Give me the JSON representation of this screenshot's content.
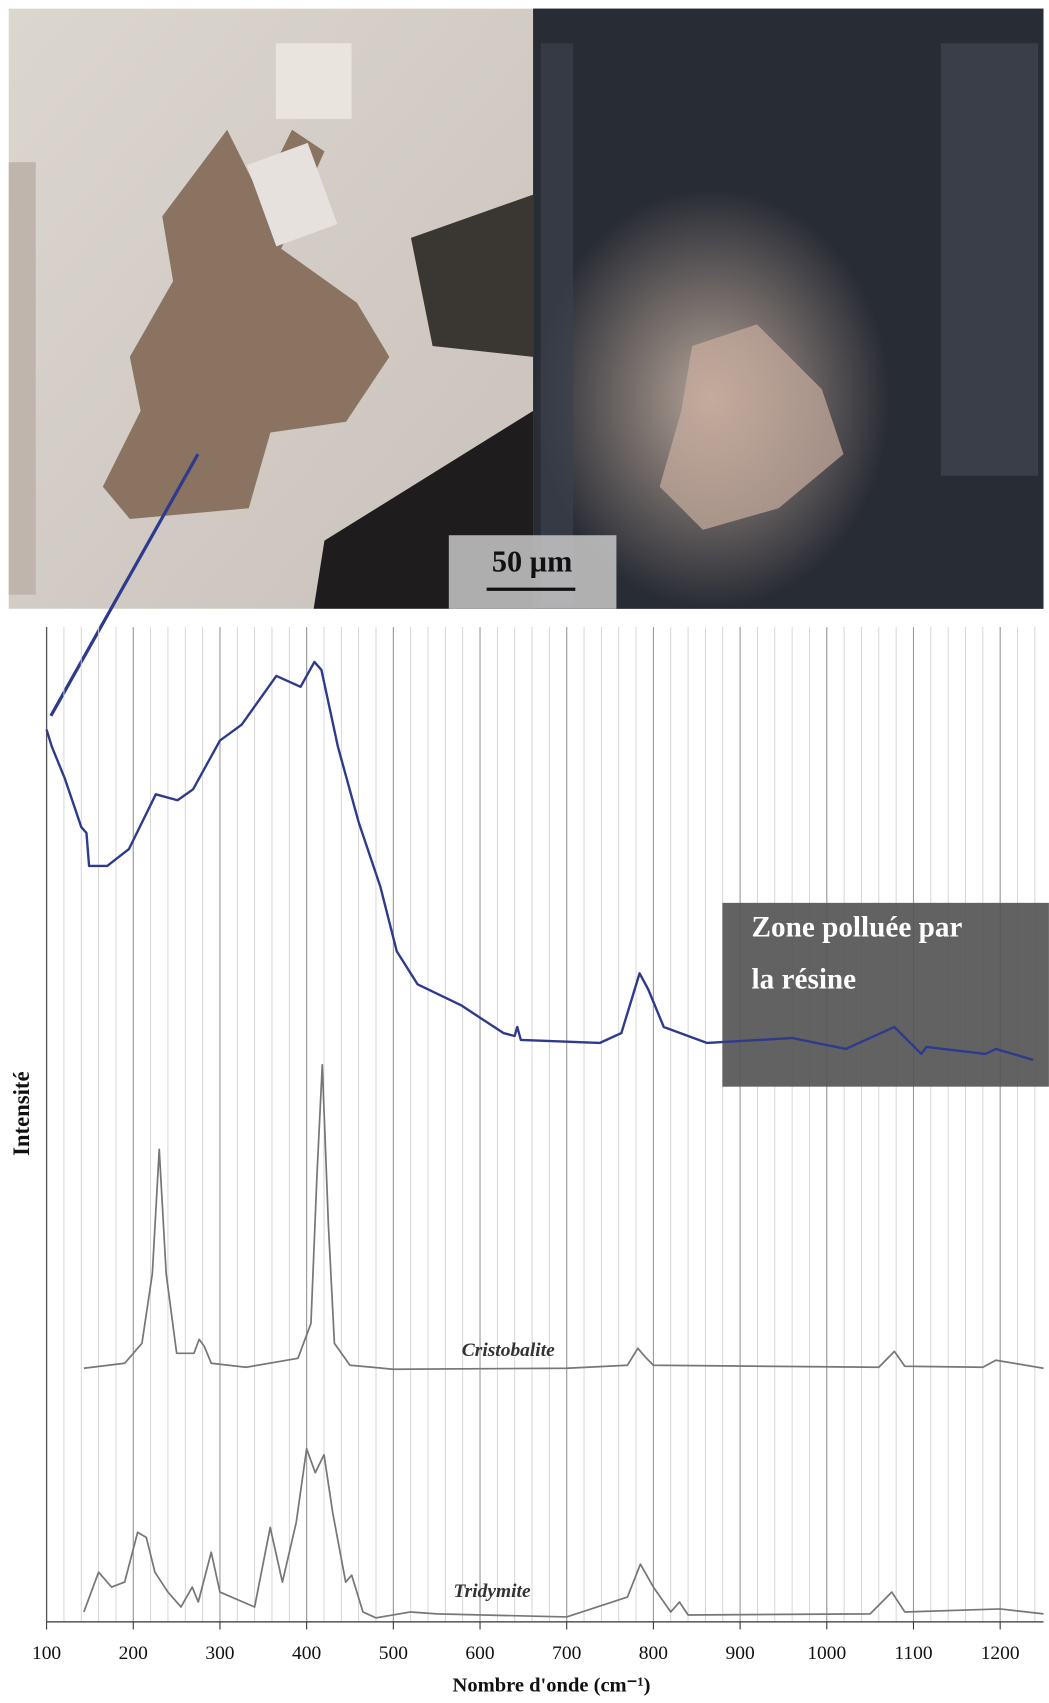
{
  "chart_data": {
    "type": "line",
    "x_label": "Nombre d'onde (cm⁻¹)",
    "y_label": "Intensité",
    "scale_bar": "50 µm",
    "annotations": {
      "zone": [
        "Zone polluée par",
        "la résine"
      ],
      "cristobalite": "Cristobalite",
      "tridymite": "Tridymite"
    },
    "xlim": [
      100,
      1250
    ],
    "xticks": [
      100,
      200,
      300,
      400,
      500,
      600,
      700,
      800,
      900,
      1000,
      1100,
      1200
    ],
    "ylim": [
      0,
      100
    ],
    "grid": true,
    "series": [
      {
        "color": "#2e3a8c",
        "x": [
          100,
          106,
          121,
          140,
          146,
          149,
          170,
          195,
          226,
          251,
          269,
          300,
          325,
          365,
          393,
          409,
          417,
          436,
          460,
          485,
          504,
          528,
          578,
          627,
          640,
          643,
          647,
          738,
          763,
          784,
          794,
          812,
          862,
          960,
          1022,
          1078,
          1109,
          1115,
          1183,
          1195,
          1238
        ],
        "values": [
          89.7,
          88,
          84.8,
          79.9,
          79.3,
          76,
          76,
          77.7,
          83.2,
          82.6,
          83.7,
          88.6,
          90.2,
          95.1,
          94,
          96.5,
          95.7,
          88,
          80.4,
          73.9,
          67.4,
          64.1,
          62,
          59.2,
          58.9,
          59.8,
          58.5,
          58.2,
          59.2,
          65.2,
          63.6,
          59.8,
          58.2,
          58.7,
          57.6,
          59.8,
          57.1,
          57.8,
          57.1,
          57.6,
          56.5
        ]
      },
      {
        "color": "#777777",
        "x": [
          143,
          190,
          210,
          222,
          230,
          238,
          250,
          270,
          276,
          282,
          290,
          330,
          390,
          405,
          412,
          418,
          425,
          432,
          450,
          500,
          700,
          770,
          782,
          792,
          800,
          1060,
          1078,
          1090,
          1180,
          1195,
          1250
        ],
        "values": [
          25.5,
          26,
          28,
          35,
          47.5,
          35,
          27,
          27,
          28.4,
          27.7,
          26,
          25.6,
          26.5,
          30,
          45,
          56,
          40,
          28,
          25.8,
          25.4,
          25.5,
          25.8,
          27.5,
          26.5,
          25.8,
          25.6,
          27.2,
          25.7,
          25.6,
          26.3,
          25.5
        ]
      },
      {
        "color": "#777777",
        "x": [
          143,
          160,
          175,
          190,
          205,
          215,
          225,
          240,
          255,
          268,
          275,
          290,
          300,
          340,
          358,
          372,
          388,
          400,
          410,
          420,
          430,
          445,
          452,
          465,
          480,
          520,
          550,
          700,
          770,
          785,
          800,
          820,
          830,
          840,
          1050,
          1075,
          1090,
          1200,
          1250
        ],
        "values": [
          1,
          5,
          3.5,
          4,
          9,
          8.5,
          5,
          3,
          1.5,
          3.5,
          2,
          7,
          3,
          1.5,
          9.5,
          4,
          10,
          17.4,
          15,
          16.8,
          11,
          4,
          4.7,
          1,
          0.4,
          1,
          0.8,
          0.5,
          2.5,
          5.8,
          3.5,
          1,
          2,
          0.7,
          0.8,
          3,
          1,
          1.3,
          0.8
        ]
      }
    ]
  }
}
